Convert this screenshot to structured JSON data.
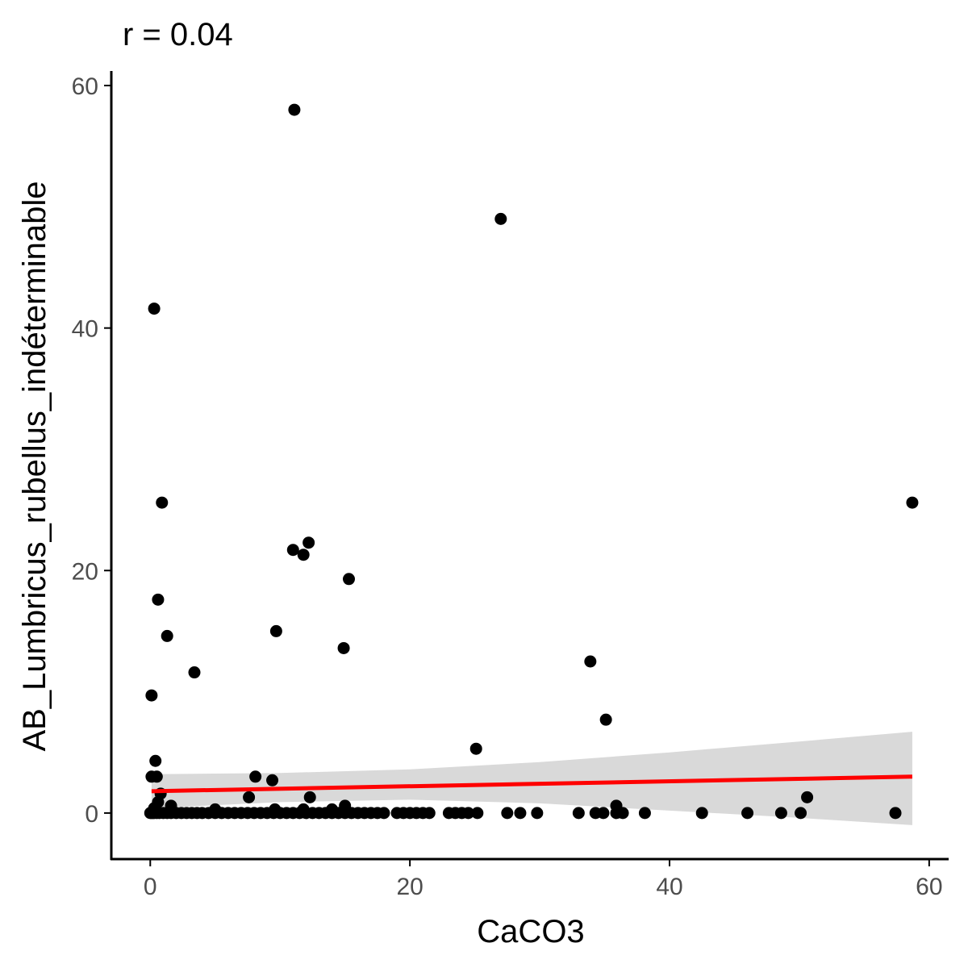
{
  "chart_data": {
    "type": "scatter",
    "title": "r = 0.04",
    "xlabel": "CaCO3",
    "ylabel": "AB_Lumbricus_rubellus_indéterminable",
    "xlim": [
      -3,
      61.5
    ],
    "ylim": [
      -3.8,
      61.2
    ],
    "x_ticks": [
      0,
      20,
      40,
      60
    ],
    "y_ticks": [
      0,
      20,
      40,
      60
    ],
    "grid": false,
    "point_color": "#000000",
    "points": [
      [
        0,
        0
      ],
      [
        0.1,
        0
      ],
      [
        0.2,
        0
      ],
      [
        0.3,
        0
      ],
      [
        0.5,
        0
      ],
      [
        0.7,
        0
      ],
      [
        1,
        0
      ],
      [
        1.3,
        0
      ],
      [
        1.6,
        0
      ],
      [
        2,
        0
      ],
      [
        2.4,
        0
      ],
      [
        2.8,
        0
      ],
      [
        3.2,
        0
      ],
      [
        3.6,
        0
      ],
      [
        4,
        0
      ],
      [
        4.5,
        0
      ],
      [
        5,
        0
      ],
      [
        5.5,
        0
      ],
      [
        6,
        0
      ],
      [
        6.5,
        0
      ],
      [
        7,
        0
      ],
      [
        7.5,
        0
      ],
      [
        8,
        0
      ],
      [
        8.5,
        0
      ],
      [
        9,
        0
      ],
      [
        9.5,
        0
      ],
      [
        10,
        0
      ],
      [
        10.5,
        0
      ],
      [
        11,
        0
      ],
      [
        11.5,
        0
      ],
      [
        12,
        0
      ],
      [
        12.5,
        0
      ],
      [
        13,
        0
      ],
      [
        13.5,
        0
      ],
      [
        14,
        0
      ],
      [
        14.5,
        0
      ],
      [
        15,
        0
      ],
      [
        15.5,
        0
      ],
      [
        16,
        0
      ],
      [
        16.5,
        0
      ],
      [
        17,
        0
      ],
      [
        17.5,
        0
      ],
      [
        18,
        0
      ],
      [
        19,
        0
      ],
      [
        19.5,
        0
      ],
      [
        20,
        0
      ],
      [
        20.5,
        0
      ],
      [
        21,
        0
      ],
      [
        21.5,
        0
      ],
      [
        23,
        0
      ],
      [
        23.5,
        0
      ],
      [
        24,
        0
      ],
      [
        24.5,
        0
      ],
      [
        25.2,
        0
      ],
      [
        27.5,
        0
      ],
      [
        28.5,
        0
      ],
      [
        29.8,
        0
      ],
      [
        33,
        0
      ],
      [
        34.3,
        0
      ],
      [
        34.9,
        0
      ],
      [
        35.9,
        0
      ],
      [
        36.4,
        0
      ],
      [
        38.1,
        0
      ],
      [
        42.5,
        0
      ],
      [
        46,
        0
      ],
      [
        48.6,
        0
      ],
      [
        50.1,
        0
      ],
      [
        57.4,
        0
      ],
      [
        0.3,
        0.4
      ],
      [
        0.6,
        0.9
      ],
      [
        1.6,
        0.6
      ],
      [
        5,
        0.3
      ],
      [
        9.6,
        0.3
      ],
      [
        11.8,
        0.3
      ],
      [
        14,
        0.3
      ],
      [
        15,
        0.6
      ],
      [
        35.9,
        0.6
      ],
      [
        0.1,
        3
      ],
      [
        0.5,
        3
      ],
      [
        0.8,
        1.6
      ],
      [
        7.6,
        1.3
      ],
      [
        8.1,
        3
      ],
      [
        9.4,
        2.7
      ],
      [
        12.3,
        1.3
      ],
      [
        50.6,
        1.3
      ],
      [
        0.1,
        9.7
      ],
      [
        0.4,
        4.3
      ],
      [
        0.6,
        17.6
      ],
      [
        0.9,
        25.6
      ],
      [
        1.3,
        14.6
      ],
      [
        3.4,
        11.6
      ],
      [
        9.7,
        15
      ],
      [
        11,
        21.7
      ],
      [
        11.8,
        21.3
      ],
      [
        12.2,
        22.3
      ],
      [
        15.3,
        19.3
      ],
      [
        14.9,
        13.6
      ],
      [
        11.1,
        58
      ],
      [
        0.3,
        41.6
      ],
      [
        27,
        49
      ],
      [
        25.1,
        5.3
      ],
      [
        33.9,
        12.5
      ],
      [
        35.1,
        7.7
      ],
      [
        58.7,
        25.6
      ]
    ],
    "trend_line": {
      "color": "#ff0000",
      "start": [
        0.1,
        1.8
      ],
      "end": [
        58.7,
        3.0
      ]
    },
    "confidence_band": {
      "color": "#d9d9d9",
      "x": [
        0.1,
        10,
        20,
        30,
        40,
        50,
        58.7
      ],
      "upper": [
        3.2,
        3.3,
        3.6,
        4.2,
        5.0,
        5.9,
        6.7
      ],
      "lower": [
        0.4,
        0.9,
        1.1,
        0.8,
        0.2,
        -0.4,
        -1.0
      ]
    }
  }
}
